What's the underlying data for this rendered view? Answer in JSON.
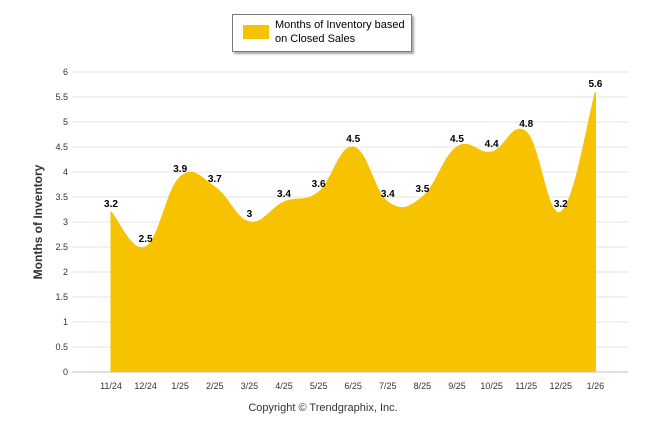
{
  "chart_data": {
    "type": "area",
    "categories": [
      "11/24",
      "12/24",
      "1/25",
      "2/25",
      "3/25",
      "4/25",
      "5/25",
      "6/25",
      "7/25",
      "8/25",
      "9/25",
      "10/25",
      "11/25",
      "12/25",
      "1/26"
    ],
    "series": [
      {
        "name": "Months of Inventory based on Closed Sales",
        "values": [
          3.2,
          2.5,
          3.9,
          3.7,
          3,
          3.4,
          3.6,
          4.5,
          3.4,
          3.5,
          4.5,
          4.4,
          4.8,
          3.2,
          5.6
        ],
        "color": "#f7c200"
      }
    ],
    "ylabel": "Months of Inventory",
    "xlabel": "",
    "ylim": [
      0,
      6
    ],
    "yticks": [
      "0",
      "0.5",
      "1",
      "1.5",
      "2",
      "2.5",
      "3",
      "3.5",
      "4",
      "4.5",
      "5",
      "5.5",
      "6"
    ],
    "grid": true,
    "legend_position": "top-center"
  },
  "legend": {
    "label": "Months of Inventory based on Closed Sales"
  },
  "footer": {
    "copyright": "Copyright © Trendgraphix, Inc."
  }
}
